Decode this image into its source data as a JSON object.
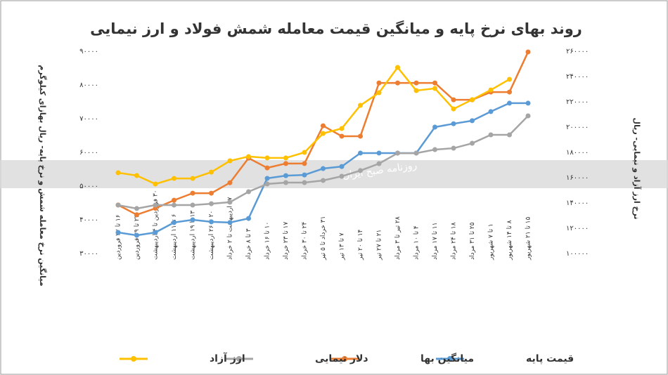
{
  "chart_data": {
    "type": "line",
    "title": "روند بهای نرخ پایه و میانگین قیمت معامله شمش فولاد و ارز نیمایی",
    "watermark": "روزنامه صبح ایران",
    "y_label": "میانگین نرخ معامله شمش و نرخ پایه- ریال بهازای کیلوگرم",
    "y2_label": "نرخ ارز آزاد و نیمایی- ریال",
    "categories": [
      "۱۶ تا ۲۲ فروردین",
      "۲۳ تا ۲۹ فروردین",
      "۳۰ فروردین تا ۴ اردیبهشت",
      "۶ تا ۱۱ اردیبهشت",
      "۱۳ تا ۱۹ اردیبهشت",
      "۲۰ تا ۲۶ اردیبهشت",
      "۲۷ اردیبهشت تا ۲ خرداد",
      "۳ تا ۸ خرداد",
      "۱۰ تا ۱۶ خرداد",
      "۱۷ تا ۲۳ خرداد",
      "۲۴ تا ۳۰ خرداد",
      "۳۱ خرداد تا ۵ تیر",
      "۷ تا ۱۳ تیر",
      "۱۴ تا ۲۰ تیر",
      "۲۱ تا ۲۷ تیر",
      "۲۸ تیر تا ۳ مرداد",
      "۴ تا ۱۰ مرداد",
      "۱۱ تا ۱۷ مرداد",
      "۱۸ تا ۲۴ مرداد",
      "۲۵ تا ۳۱ مرداد",
      "۱ تا ۷ شهریور",
      "۸ تا ۱۴ شهریور",
      "۱۵ تا ۲۱ شهریور"
    ],
    "series": [
      {
        "name": "قیمت پایه",
        "color": "#5b9bd5",
        "values": [
          36250,
          35400,
          36250,
          39200,
          40000,
          39400,
          39200,
          40400,
          52300,
          53100,
          53300,
          55200,
          55800,
          59800,
          59800,
          59800,
          59800,
          67500,
          68500,
          69400,
          72100,
          74600,
          74600
        ]
      },
      {
        "name": "میانگین بها",
        "color": "#ed7d31",
        "values": [
          44400,
          41500,
          43400,
          45800,
          47900,
          47900,
          51000,
          58300,
          55400,
          56700,
          56700,
          67900,
          64800,
          64800,
          80600,
          80600,
          80600,
          80600,
          75600,
          75600,
          77900,
          77900,
          89800
        ]
      },
      {
        "name": "دلار نیمایی",
        "color": "#a5a5a5",
        "axis": "y2",
        "values": [
          138300,
          135600,
          138300,
          138300,
          138300,
          139400,
          140600,
          148900,
          155000,
          156100,
          156100,
          157800,
          161100,
          165600,
          171100,
          179400,
          179400,
          182200,
          183300,
          187200,
          193900,
          193900,
          208900
        ]
      },
      {
        "name": "ارز آزاد",
        "color": "#ffc000",
        "axis": "y2",
        "values": [
          163900,
          161700,
          155000,
          159400,
          159400,
          164400,
          173300,
          176700,
          175600,
          175600,
          180000,
          195000,
          198900,
          217200,
          227200,
          247200,
          228900,
          230600,
          214400,
          221700,
          229400,
          237800,
          null
        ]
      }
    ],
    "ylim": [
      30000,
      90000
    ],
    "yticks": [
      {
        "value": 30000,
        "label": "۳۰۰۰۰"
      },
      {
        "value": 40000,
        "label": "۴۰۰۰۰"
      },
      {
        "value": 50000,
        "label": "۵۰۰۰۰"
      },
      {
        "value": 60000,
        "label": "۶۰۰۰۰"
      },
      {
        "value": 70000,
        "label": "۷۰۰۰۰"
      },
      {
        "value": 80000,
        "label": "۸۰۰۰۰"
      },
      {
        "value": 90000,
        "label": "۹۰۰۰۰"
      }
    ],
    "y2lim": [
      100000,
      260000
    ],
    "y2ticks": [
      {
        "value": 100000,
        "label": "۱۰۰۰۰۰"
      },
      {
        "value": 120000,
        "label": "۱۲۰۰۰۰"
      },
      {
        "value": 140000,
        "label": "۱۴۰۰۰۰"
      },
      {
        "value": 160000,
        "label": "۱۶۰۰۰۰"
      },
      {
        "value": 180000,
        "label": "۱۸۰۰۰۰"
      },
      {
        "value": 200000,
        "label": "۲۰۰۰۰۰"
      },
      {
        "value": 220000,
        "label": "۲۲۰۰۰۰"
      },
      {
        "value": 240000,
        "label": "۲۴۰۰۰۰"
      },
      {
        "value": 260000,
        "label": "۲۶۰۰۰۰"
      }
    ],
    "grid": false
  }
}
